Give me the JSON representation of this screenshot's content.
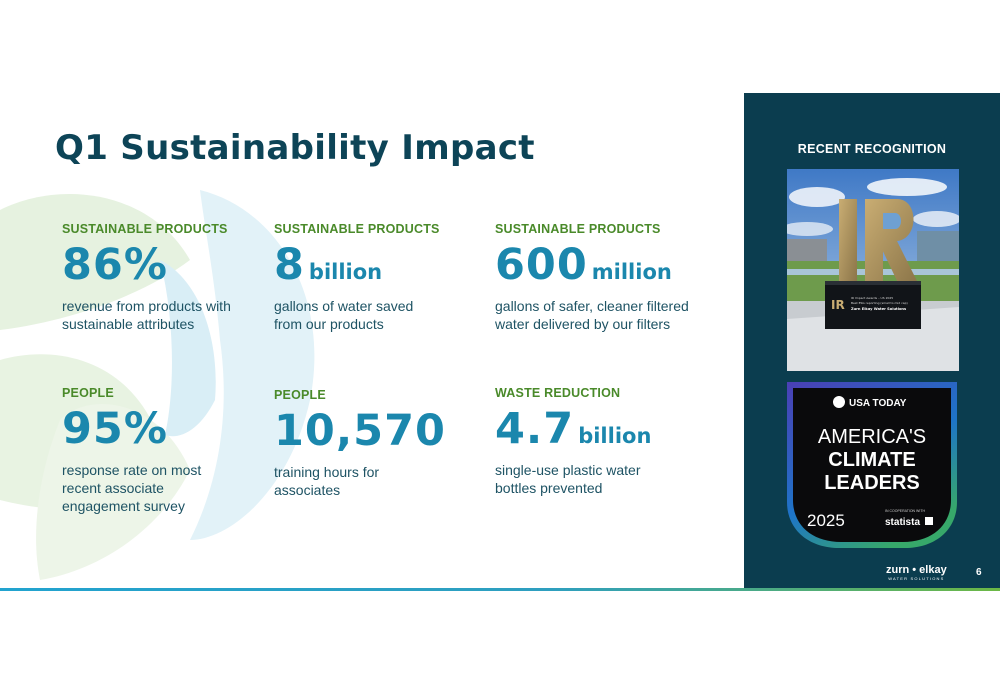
{
  "title": "Q1 Sustainability Impact",
  "stats": [
    {
      "category": "SUSTAINABLE PRODUCTS",
      "value": "86%",
      "unit": "",
      "description": "revenue from products with sustainable attributes"
    },
    {
      "category": "SUSTAINABLE PRODUCTS",
      "value": "8",
      "unit": "billion",
      "description": "gallons of water saved from our products"
    },
    {
      "category": "SUSTAINABLE PRODUCTS",
      "value": "600",
      "unit": "million",
      "description": "gallons of safer, cleaner filtered water delivered by our filters"
    },
    {
      "category": "PEOPLE",
      "value": "95%",
      "unit": "",
      "description": "response rate on most recent associate engagement survey"
    },
    {
      "category": "PEOPLE",
      "value": "10,570",
      "unit": "",
      "description": "training hours for associates"
    },
    {
      "category": "WASTE REDUCTION",
      "value": "4.7",
      "unit": "billion",
      "description": "single-use plastic water bottles prevented"
    }
  ],
  "recognition": {
    "label": "RECENT RECOGNITION",
    "award_photo": {
      "plaque_logo": "IR",
      "plaque_line1": "IR Impact Awards – US 2025",
      "plaque_line2": "Best ESG reporting (small to mid cap)",
      "plaque_line3": "Zurn Elkay Water Solutions"
    },
    "badge": {
      "publisher": "USA TODAY",
      "line1": "AMERICA'S",
      "line2": "CLIMATE",
      "line3": "LEADERS",
      "year": "2025",
      "cooperation": "IN COOPERATION WITH",
      "partner": "statista"
    }
  },
  "footer": {
    "logo": "zurn • elkay",
    "logo_sub": "WATER SOLUTIONS",
    "page_number": "6"
  },
  "colors": {
    "title": "#0d4457",
    "category_green": "#4a8a2a",
    "stat_blue": "#1b87ad",
    "panel": "#0b3d4f"
  }
}
